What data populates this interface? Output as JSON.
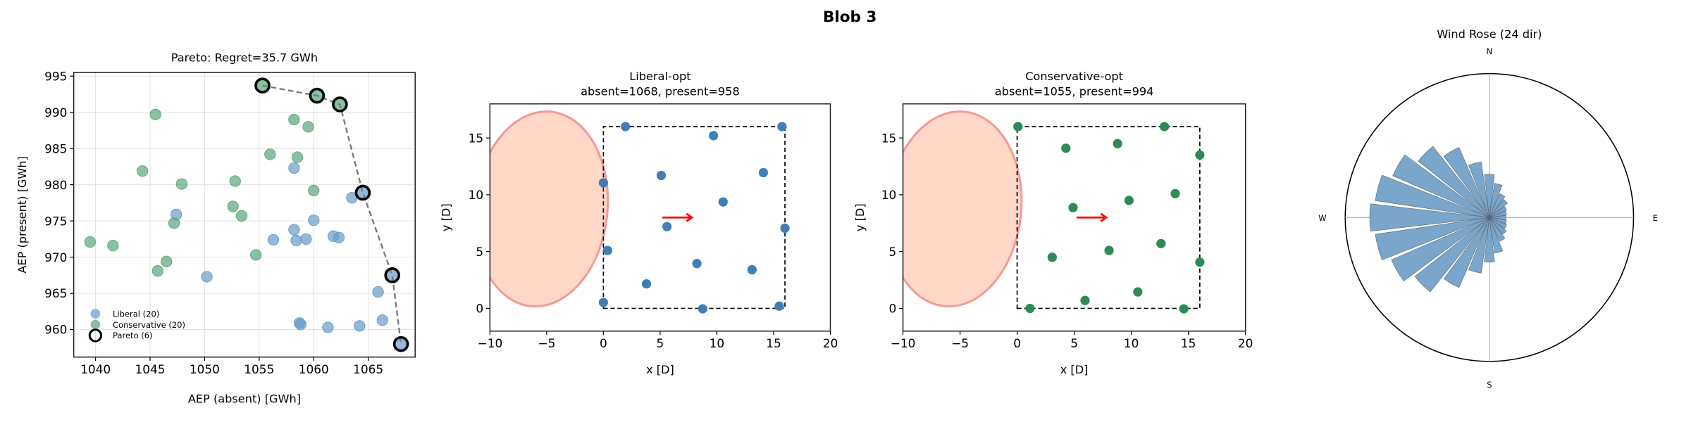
{
  "figure": {
    "title": "Blob 3"
  },
  "chart_data": [
    {
      "type": "scatter",
      "title": "Pareto: Regret=35.7 GWh",
      "xlabel": "AEP (absent) [GWh]",
      "ylabel": "AEP (present) [GWh]",
      "xlim": [
        1038,
        1069.3
      ],
      "ylim": [
        956.2,
        995.5
      ],
      "xticks": [
        1040,
        1045,
        1050,
        1055,
        1060,
        1065
      ],
      "yticks": [
        960,
        965,
        970,
        975,
        980,
        985,
        990,
        995
      ],
      "grid": true,
      "legend_placement": "lower-left",
      "series": [
        {
          "name": "Liberal (20)",
          "color": "#6a9bc9",
          "points": [
            [
              1058.2,
              982.3
            ],
            [
              1047.4,
              975.9
            ],
            [
              1063.5,
              978.2
            ],
            [
              1064.5,
              978.9
            ],
            [
              1060.0,
              975.1
            ],
            [
              1058.2,
              973.8
            ],
            [
              1058.4,
              972.3
            ],
            [
              1056.3,
              972.4
            ],
            [
              1059.3,
              972.5
            ],
            [
              1061.8,
              972.9
            ],
            [
              1062.3,
              972.7
            ],
            [
              1050.2,
              967.3
            ],
            [
              1067.2,
              967.5
            ],
            [
              1065.9,
              965.2
            ],
            [
              1066.3,
              961.3
            ],
            [
              1058.7,
              960.9
            ],
            [
              1058.8,
              960.7
            ],
            [
              1061.3,
              960.3
            ],
            [
              1064.2,
              960.5
            ],
            [
              1068.0,
              958.0
            ]
          ]
        },
        {
          "name": "Conservative (20)",
          "color": "#5aa77a",
          "points": [
            [
              1055.3,
              993.7
            ],
            [
              1060.3,
              992.3
            ],
            [
              1062.4,
              991.1
            ],
            [
              1045.5,
              989.7
            ],
            [
              1058.2,
              989.0
            ],
            [
              1059.5,
              988.0
            ],
            [
              1056.0,
              984.2
            ],
            [
              1058.5,
              983.8
            ],
            [
              1044.3,
              981.9
            ],
            [
              1047.9,
              980.1
            ],
            [
              1052.8,
              980.5
            ],
            [
              1060.0,
              979.2
            ],
            [
              1052.6,
              977.0
            ],
            [
              1053.4,
              975.7
            ],
            [
              1047.2,
              974.7
            ],
            [
              1039.5,
              972.1
            ],
            [
              1041.6,
              971.6
            ],
            [
              1054.7,
              970.3
            ],
            [
              1046.5,
              969.4
            ],
            [
              1045.7,
              968.1
            ]
          ]
        },
        {
          "name": "Pareto (6)",
          "color": "#000000",
          "points": [
            [
              1055.3,
              993.7
            ],
            [
              1060.3,
              992.3
            ],
            [
              1062.4,
              991.1
            ],
            [
              1064.5,
              978.9
            ],
            [
              1067.2,
              967.5
            ],
            [
              1068.0,
              958.0
            ]
          ]
        }
      ]
    },
    {
      "type": "scatter",
      "title": "Liberal-opt",
      "subtitle": "absent=1068, present=958",
      "xlabel": "x [D]",
      "ylabel": "y [D]",
      "xlim": [
        -10,
        20
      ],
      "ylim": [
        -2,
        18
      ],
      "xticks": [
        -10,
        -5,
        0,
        5,
        10,
        15,
        20
      ],
      "yticks": [
        0,
        5,
        10,
        15
      ],
      "color": "#3f7fb5",
      "boundary": [
        [
          0,
          0
        ],
        [
          16,
          0
        ],
        [
          16,
          16
        ],
        [
          0,
          16
        ]
      ],
      "wind_arrow": [
        [
          5.2,
          8
        ],
        [
          7.8,
          8
        ]
      ],
      "points": [
        [
          1.94,
          16.0
        ],
        [
          15.74,
          16.0
        ],
        [
          9.7,
          15.2
        ],
        [
          5.1,
          11.7
        ],
        [
          14.1,
          11.95
        ],
        [
          0.0,
          11.05
        ],
        [
          10.55,
          9.37
        ],
        [
          5.6,
          7.2
        ],
        [
          16.0,
          7.06
        ],
        [
          0.37,
          5.1
        ],
        [
          8.24,
          3.95
        ],
        [
          13.1,
          3.4
        ],
        [
          3.8,
          2.16
        ],
        [
          0.0,
          0.52
        ],
        [
          8.75,
          -0.04
        ],
        [
          15.5,
          0.2
        ]
      ]
    },
    {
      "type": "scatter",
      "title": "Conservative-opt",
      "subtitle": "absent=1055, present=994",
      "xlabel": "x [D]",
      "ylabel": "y [D]",
      "xlim": [
        -10,
        20
      ],
      "ylim": [
        -2,
        18
      ],
      "xticks": [
        -10,
        -5,
        0,
        5,
        10,
        15,
        20
      ],
      "yticks": [
        0,
        5,
        10,
        15
      ],
      "color": "#2e8b57",
      "boundary": [
        [
          0,
          0
        ],
        [
          16,
          0
        ],
        [
          16,
          16
        ],
        [
          0,
          16
        ]
      ],
      "wind_arrow": [
        [
          5.2,
          8
        ],
        [
          7.8,
          8
        ]
      ],
      "points": [
        [
          0.07,
          16.0
        ],
        [
          12.9,
          16.0
        ],
        [
          4.27,
          14.1
        ],
        [
          8.8,
          14.5
        ],
        [
          16.0,
          13.5
        ],
        [
          13.85,
          10.1
        ],
        [
          9.8,
          9.5
        ],
        [
          4.9,
          8.87
        ],
        [
          12.6,
          5.7
        ],
        [
          8.05,
          5.1
        ],
        [
          3.07,
          4.5
        ],
        [
          16.0,
          4.07
        ],
        [
          10.57,
          1.45
        ],
        [
          5.95,
          0.7
        ],
        [
          1.13,
          0.0
        ],
        [
          14.6,
          -0.04
        ]
      ]
    },
    {
      "type": "bar",
      "subtype": "polar-wind-rose",
      "title": "Wind Rose (24 dir)",
      "compass_labels": {
        "n": "N",
        "e": "E",
        "s": "S",
        "w": "W"
      },
      "color": "#7aa6cb",
      "rlim": [
        0,
        1
      ],
      "categories": [
        0,
        15,
        30,
        45,
        60,
        75,
        90,
        105,
        120,
        135,
        150,
        165,
        180,
        195,
        210,
        225,
        240,
        255,
        270,
        285,
        300,
        315,
        330,
        345
      ],
      "values": [
        0.3,
        0.24,
        0.18,
        0.16,
        0.13,
        0.12,
        0.115,
        0.12,
        0.13,
        0.15,
        0.18,
        0.25,
        0.31,
        0.39,
        0.53,
        0.66,
        0.74,
        0.8,
        0.83,
        0.8,
        0.73,
        0.63,
        0.53,
        0.39
      ]
    }
  ]
}
